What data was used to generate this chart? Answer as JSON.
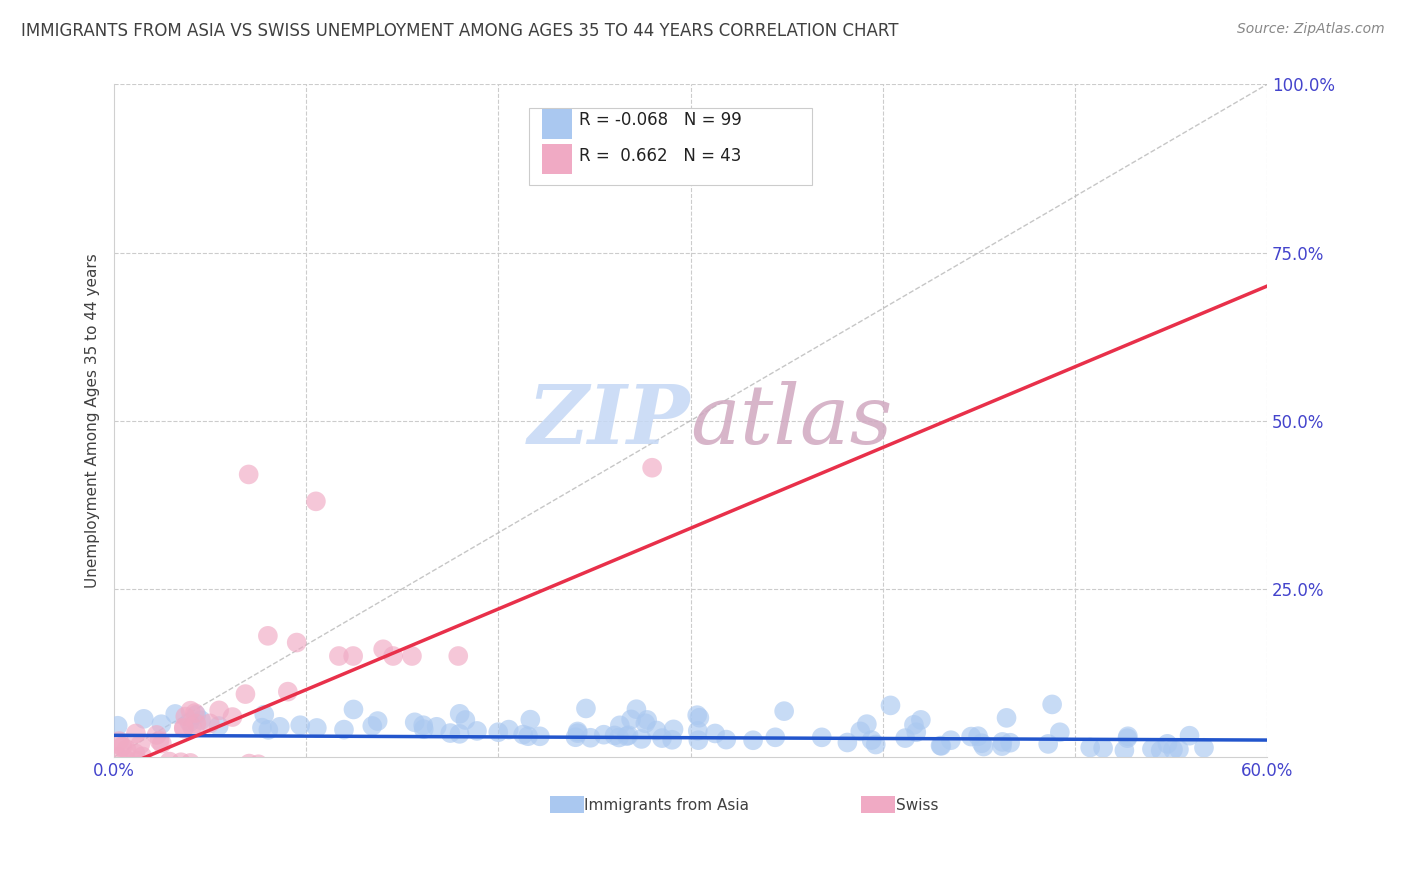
{
  "title": "IMMIGRANTS FROM ASIA VS SWISS UNEMPLOYMENT AMONG AGES 35 TO 44 YEARS CORRELATION CHART",
  "source": "Source: ZipAtlas.com",
  "ylabel": "Unemployment Among Ages 35 to 44 years",
  "xlim": [
    0.0,
    0.6
  ],
  "ylim": [
    0.0,
    1.0
  ],
  "legend_r_blue": "-0.068",
  "legend_n_blue": "99",
  "legend_r_pink": "0.662",
  "legend_n_pink": "43",
  "blue_color": "#aac8f0",
  "pink_color": "#f0aac4",
  "blue_line_color": "#2255cc",
  "pink_line_color": "#e8304a",
  "ref_line_color": "#b8b8b8",
  "grid_color": "#cccccc",
  "watermark_blue": "#c5d8f5",
  "watermark_pink": "#d0a8c0",
  "title_color": "#404040",
  "tick_color": "#4444cc",
  "ylabel_color": "#404040",
  "background": "#ffffff",
  "n_blue": 99,
  "n_pink": 43,
  "seed": 7,
  "pink_line_x0": 0.0,
  "pink_line_y0": -0.02,
  "pink_line_x1": 0.6,
  "pink_line_y1": 0.7,
  "blue_line_x0": 0.0,
  "blue_line_y0": 0.032,
  "blue_line_x1": 0.6,
  "blue_line_y1": 0.025
}
